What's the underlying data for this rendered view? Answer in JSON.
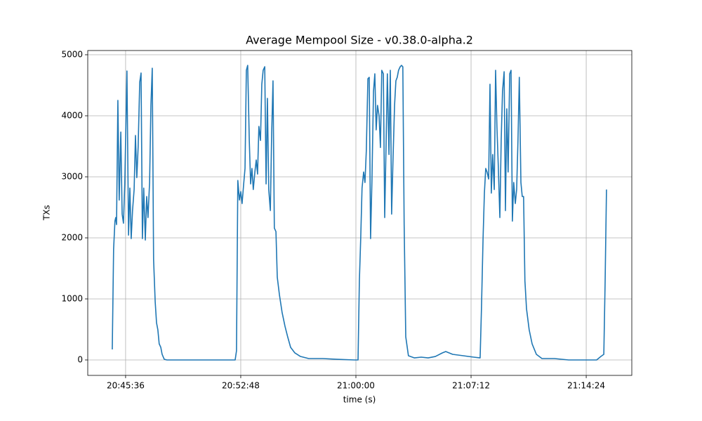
{
  "chart_data": {
    "type": "line",
    "title": "Average Mempool Size  -  v0.38.0-alpha.2",
    "x_label": "time (s)",
    "y_label": "TXs",
    "color": "#1f77b4",
    "grid": true,
    "xlim": [
      "20:43:14",
      "21:17:15"
    ],
    "xticks": [
      "20:45:36",
      "20:52:48",
      "21:00:00",
      "21:07:12",
      "21:14:24"
    ],
    "ylim": [
      -253,
      5069
    ],
    "yticks": [
      0,
      1000,
      2000,
      3000,
      4000,
      5000
    ],
    "x": [
      "20:44:46",
      "20:44:51",
      "20:44:56",
      "20:44:59",
      "20:45:02",
      "20:45:07",
      "20:45:12",
      "20:45:18",
      "20:45:23",
      "20:45:28",
      "20:45:33",
      "20:45:41",
      "20:45:47",
      "20:45:52",
      "20:45:57",
      "20:46:02",
      "20:46:08",
      "20:46:13",
      "20:46:18",
      "20:46:23",
      "20:46:29",
      "20:46:34",
      "20:46:39",
      "20:46:44",
      "20:46:50",
      "20:46:55",
      "20:47:00",
      "20:47:06",
      "20:47:11",
      "20:47:16",
      "20:47:21",
      "20:47:27",
      "20:47:32",
      "20:47:37",
      "20:47:42",
      "20:47:48",
      "20:47:53",
      "20:48:01",
      "20:48:11",
      "20:52:27",
      "20:52:32",
      "20:52:37",
      "20:52:43",
      "20:52:48",
      "20:52:53",
      "20:52:59",
      "20:53:04",
      "20:53:09",
      "20:53:14",
      "20:53:20",
      "20:53:25",
      "20:53:30",
      "20:53:35",
      "20:53:41",
      "20:53:46",
      "20:53:51",
      "20:53:56",
      "20:54:02",
      "20:54:07",
      "20:54:12",
      "20:54:18",
      "20:54:23",
      "20:54:28",
      "20:54:33",
      "20:54:39",
      "20:54:44",
      "20:54:49",
      "20:54:54",
      "20:55:00",
      "20:55:05",
      "20:55:13",
      "20:55:23",
      "20:55:34",
      "20:55:44",
      "20:55:55",
      "20:56:11",
      "20:56:32",
      "20:57:03",
      "20:57:56",
      "20:58:49",
      "20:59:55",
      "21:00:08",
      "21:00:13",
      "21:00:18",
      "21:00:23",
      "21:00:29",
      "21:00:34",
      "21:00:39",
      "21:00:45",
      "21:00:50",
      "21:00:55",
      "21:01:00",
      "21:01:06",
      "21:01:11",
      "21:01:16",
      "21:01:21",
      "21:01:27",
      "21:01:32",
      "21:01:37",
      "21:01:43",
      "21:01:48",
      "21:01:53",
      "21:01:58",
      "21:02:04",
      "21:02:09",
      "21:02:14",
      "21:02:19",
      "21:02:25",
      "21:02:30",
      "21:02:35",
      "21:02:40",
      "21:02:46",
      "21:02:51",
      "21:02:56",
      "21:03:01",
      "21:03:07",
      "21:03:17",
      "21:03:39",
      "21:04:05",
      "21:04:31",
      "21:04:58",
      "21:05:24",
      "21:05:37",
      "21:06:03",
      "21:06:43",
      "21:07:22",
      "21:07:46",
      "21:07:51",
      "21:07:57",
      "21:08:02",
      "21:08:07",
      "21:08:12",
      "21:08:18",
      "21:08:23",
      "21:08:28",
      "21:08:33",
      "21:08:39",
      "21:08:44",
      "21:08:49",
      "21:08:54",
      "21:09:00",
      "21:09:05",
      "21:09:10",
      "21:09:16",
      "21:09:21",
      "21:09:26",
      "21:09:31",
      "21:09:37",
      "21:09:42",
      "21:09:47",
      "21:09:52",
      "21:09:58",
      "21:10:03",
      "21:10:08",
      "21:10:13",
      "21:10:19",
      "21:10:24",
      "21:10:29",
      "21:10:34",
      "21:10:40",
      "21:10:50",
      "21:11:01",
      "21:11:17",
      "21:11:38",
      "21:12:25",
      "21:13:18",
      "21:15:03",
      "21:15:19",
      "21:15:30",
      "21:15:35",
      "21:15:40"
    ],
    "values": [
      172,
      1815,
      2275,
      2333,
      2218,
      4252,
      2620,
      3734,
      2390,
      2240,
      2907,
      4734,
      2045,
      2815,
      1988,
      2447,
      2792,
      3677,
      2987,
      3481,
      4550,
      4700,
      1988,
      2815,
      1965,
      2677,
      2333,
      2907,
      4171,
      4780,
      1643,
      954,
      609,
      494,
      264,
      207,
      92,
      11,
      0,
      0,
      149,
      2941,
      2620,
      2758,
      2562,
      2884,
      3137,
      4745,
      4826,
      3596,
      2884,
      3137,
      2792,
      3079,
      3275,
      3045,
      3826,
      3596,
      4516,
      4745,
      4803,
      2884,
      4286,
      2792,
      2447,
      3711,
      4573,
      2160,
      2103,
      1356,
      1069,
      781,
      551,
      379,
      207,
      115,
      57,
      23,
      23,
      11,
      0,
      0,
      1298,
      1988,
      2815,
      3079,
      2907,
      3424,
      4607,
      4630,
      1988,
      2907,
      4401,
      4688,
      3769,
      4171,
      3999,
      3481,
      4745,
      4688,
      2333,
      3481,
      4688,
      3366,
      4745,
      2390,
      3252,
      4171,
      4573,
      4630,
      4745,
      4803,
      4826,
      4803,
      2218,
      379,
      69,
      34,
      46,
      34,
      57,
      115,
      138,
      92,
      69,
      46,
      34,
      839,
      1988,
      2734,
      3137,
      3079,
      2964,
      4516,
      2734,
      3366,
      2792,
      4745,
      3826,
      3194,
      2333,
      3596,
      4401,
      4722,
      2447,
      4114,
      3079,
      4688,
      4745,
      2275,
      2907,
      2562,
      2792,
      3596,
      4630,
      2907,
      2677,
      2677,
      1298,
      839,
      494,
      264,
      92,
      23,
      23,
      0,
      0,
      57,
      92,
      1298,
      2792
    ]
  }
}
